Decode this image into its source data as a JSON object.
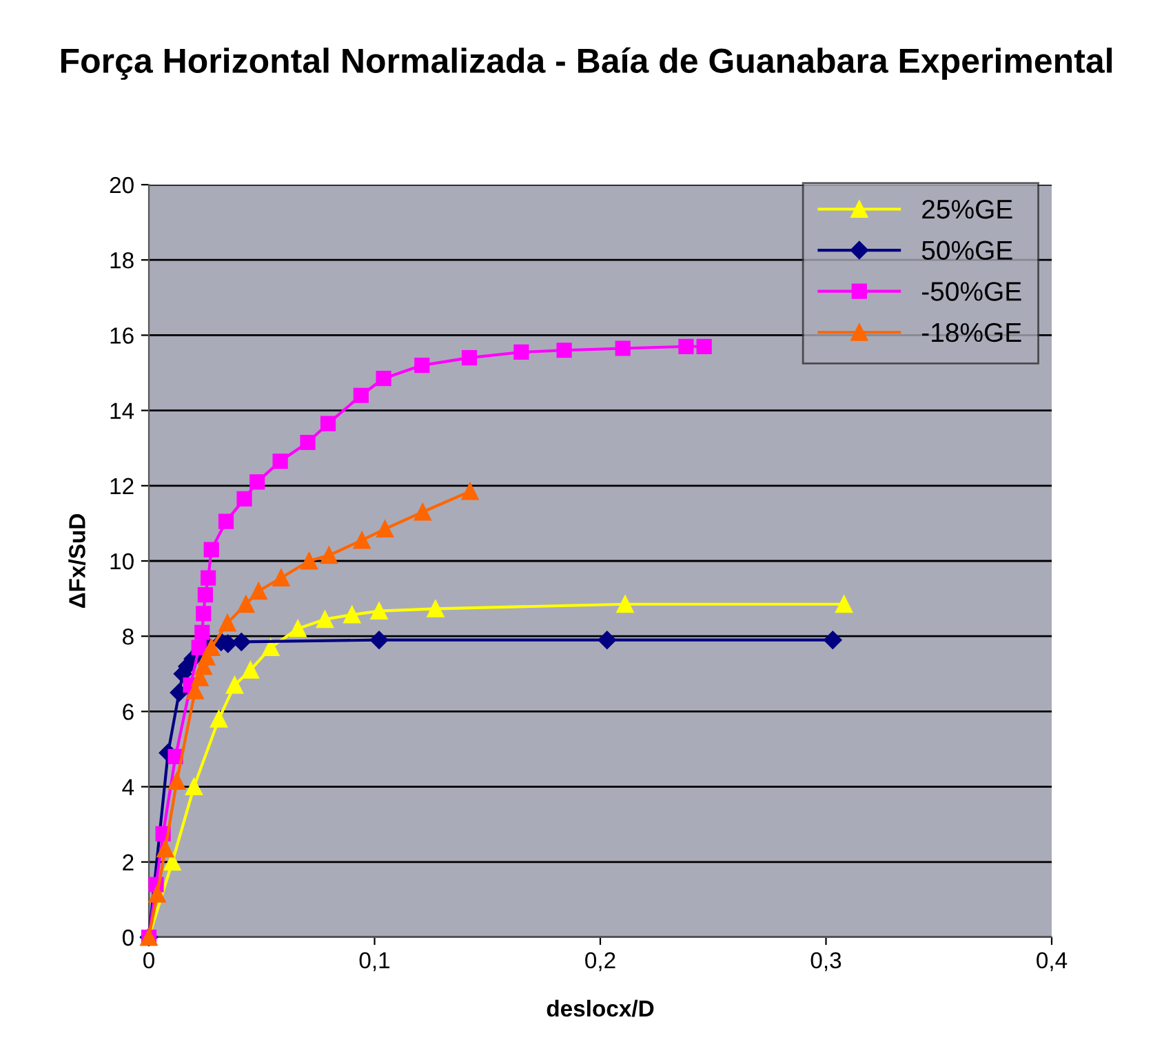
{
  "chart_data": {
    "type": "line",
    "title": "Força Horizontal Normalizada - Baía de Guanabara Experimental",
    "xlabel": "deslocx/D",
    "ylabel": "ΔFx/SuD",
    "xlim": [
      0,
      0.4
    ],
    "xticks": [
      0,
      {
        "value": 0.1,
        "label": "0,1"
      },
      {
        "value": 0.2,
        "label": "0,2"
      },
      {
        "value": 0.3,
        "label": "0,3"
      },
      {
        "value": 0.4,
        "label": "0,4"
      }
    ],
    "ylim": [
      0,
      20
    ],
    "yticks": [
      0,
      2,
      4,
      6,
      8,
      10,
      12,
      14,
      16,
      18,
      20
    ],
    "grid": "y",
    "legend": "top right",
    "series": [
      {
        "name": "25%GE",
        "color": "#ffff00",
        "marker": "triangle",
        "x": [
          0,
          0.0104,
          0.02,
          0.031,
          0.038,
          0.045,
          0.054,
          0.066,
          0.078,
          0.09,
          0.102,
          0.127,
          0.211,
          0.308
        ],
        "values": [
          0,
          2.0,
          4.0,
          5.8,
          6.7,
          7.1,
          7.7,
          8.2,
          8.45,
          8.57,
          8.67,
          8.73,
          8.85,
          8.85
        ]
      },
      {
        "name": "50%GE",
        "color": "#000080",
        "marker": "diamond",
        "x": [
          0,
          0.0085,
          0.0134,
          0.015,
          0.017,
          0.0195,
          0.0226,
          0.026,
          0.032,
          0.035,
          0.041,
          0.102,
          0.203,
          0.303
        ],
        "values": [
          0,
          4.9,
          6.5,
          7.0,
          7.2,
          7.4,
          7.6,
          7.75,
          7.85,
          7.8,
          7.85,
          7.9,
          7.9,
          7.9
        ]
      },
      {
        "name": "-50%GE",
        "color": "#ff00ff",
        "marker": "square",
        "x": [
          0,
          0.0032,
          0.0063,
          0.0118,
          0.0185,
          0.0222,
          0.0236,
          0.0242,
          0.025,
          0.0263,
          0.0277,
          0.0342,
          0.0423,
          0.048,
          0.0582,
          0.0704,
          0.0794,
          0.094,
          0.104,
          0.121,
          0.142,
          0.165,
          0.184,
          0.21,
          0.238,
          0.246
        ],
        "values": [
          0,
          1.4,
          2.75,
          4.8,
          6.7,
          7.7,
          8.1,
          8.6,
          9.1,
          9.55,
          10.3,
          11.05,
          11.65,
          12.1,
          12.65,
          13.15,
          13.65,
          14.4,
          14.85,
          15.2,
          15.4,
          15.55,
          15.6,
          15.65,
          15.7,
          15.7
        ]
      },
      {
        "name": "-18%GE",
        "color": "#ff6600",
        "marker": "triangle",
        "x": [
          0,
          0.0037,
          0.0073,
          0.0124,
          0.0205,
          0.0226,
          0.0242,
          0.0256,
          0.0277,
          0.0348,
          0.043,
          0.0486,
          0.0586,
          0.071,
          0.0798,
          0.0944,
          0.1046,
          0.1213,
          0.1423
        ],
        "values": [
          0,
          1.15,
          2.35,
          4.15,
          6.55,
          6.9,
          7.2,
          7.45,
          7.7,
          8.35,
          8.85,
          9.2,
          9.55,
          10.0,
          10.15,
          10.55,
          10.85,
          11.3,
          11.85
        ]
      }
    ]
  }
}
